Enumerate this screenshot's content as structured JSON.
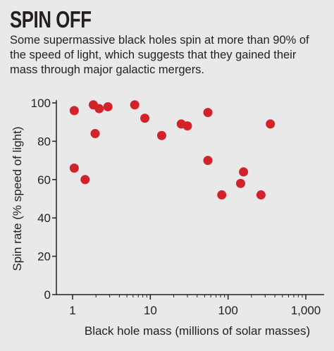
{
  "title": "SPIN OFF",
  "subtitle": "Some supermassive black holes spin at more than 90% of the speed of light, which suggests that they gained their mass through major galactic mergers.",
  "chart_data": {
    "type": "scatter",
    "title": "SPIN OFF",
    "subtitle": "Some supermassive black holes spin at more than 90% of the speed of light, which suggests that they gained their mass through major galactic mergers.",
    "xlabel": "Black hole mass (millions of solar masses)",
    "ylabel": "Spin rate (% speed of light)",
    "x_scale": "log",
    "xlim": [
      1,
      1000
    ],
    "ylim": [
      0,
      100
    ],
    "x_ticks": [
      1,
      10,
      100,
      1000
    ],
    "x_tick_labels": [
      "1",
      "10",
      "100",
      "1,000"
    ],
    "y_ticks": [
      0,
      20,
      40,
      60,
      80,
      100
    ],
    "y_tick_labels": [
      "0",
      "20",
      "40",
      "60",
      "80",
      "100"
    ],
    "grid": false,
    "marker_color": "#d2232a",
    "points": [
      {
        "x": 1.05,
        "y": 96
      },
      {
        "x": 1.05,
        "y": 66
      },
      {
        "x": 1.45,
        "y": 60
      },
      {
        "x": 1.85,
        "y": 99
      },
      {
        "x": 1.95,
        "y": 84
      },
      {
        "x": 2.2,
        "y": 97
      },
      {
        "x": 2.85,
        "y": 98
      },
      {
        "x": 6.3,
        "y": 99
      },
      {
        "x": 8.5,
        "y": 92
      },
      {
        "x": 14,
        "y": 83
      },
      {
        "x": 25,
        "y": 89
      },
      {
        "x": 30,
        "y": 88
      },
      {
        "x": 55,
        "y": 95
      },
      {
        "x": 55,
        "y": 70
      },
      {
        "x": 83,
        "y": 52
      },
      {
        "x": 145,
        "y": 58
      },
      {
        "x": 158,
        "y": 64
      },
      {
        "x": 265,
        "y": 52
      },
      {
        "x": 350,
        "y": 89
      }
    ]
  }
}
